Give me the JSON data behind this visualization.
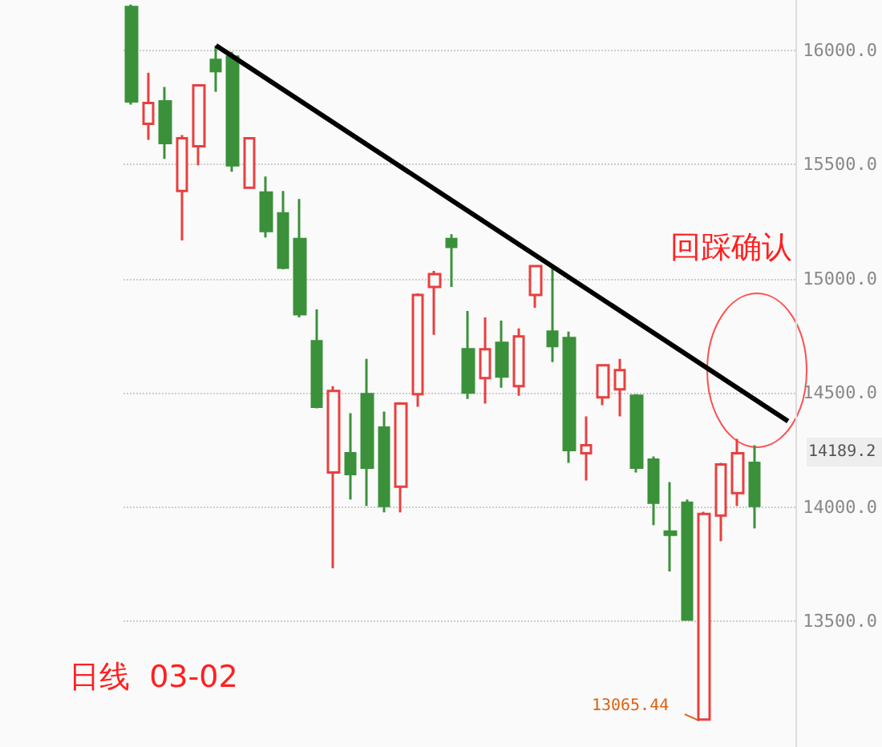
{
  "chart_data": {
    "type": "candlestick",
    "title": "日线  03-02",
    "categories": [
      null,
      null,
      null,
      null,
      null,
      null,
      null,
      null,
      null,
      null,
      null,
      null,
      null,
      null,
      null,
      null,
      null,
      null,
      null,
      null,
      null,
      null,
      null,
      null,
      null,
      null,
      null,
      null,
      null,
      null,
      null,
      null,
      null,
      null,
      null,
      null,
      null,
      null,
      null,
      null
    ],
    "ohlc": [
      [
        16189,
        16200,
        15762,
        15776
      ],
      [
        15678,
        15902,
        15608,
        15769
      ],
      [
        15776,
        15839,
        15524,
        15594
      ],
      [
        15384,
        15629,
        15167,
        15615
      ],
      [
        15580,
        15846,
        15496,
        15846
      ],
      [
        15958,
        16021,
        15818,
        15909
      ],
      [
        15972,
        15993,
        15468,
        15496
      ],
      [
        15398,
        15615,
        15398,
        15615
      ],
      [
        15377,
        15447,
        15181,
        15209
      ],
      [
        15286,
        15384,
        15041,
        15048
      ],
      [
        15174,
        15349,
        14831,
        14845
      ],
      [
        14726,
        14866,
        14432,
        14439
      ],
      [
        14152,
        14530,
        13732,
        14509
      ],
      [
        14236,
        14411,
        14033,
        14145
      ],
      [
        14495,
        14649,
        14005,
        14173
      ],
      [
        14348,
        14418,
        13977,
        14005
      ],
      [
        14089,
        14460,
        13977,
        14453
      ],
      [
        14495,
        14936,
        14439,
        14929
      ],
      [
        14964,
        15034,
        14754,
        15020
      ],
      [
        15174,
        15195,
        14964,
        15139
      ],
      [
        14691,
        14859,
        14474,
        14502
      ],
      [
        14565,
        14831,
        14453,
        14691
      ],
      [
        14719,
        14817,
        14523,
        14572
      ],
      [
        14530,
        14782,
        14488,
        14747
      ],
      [
        14929,
        15055,
        14873,
        15055
      ],
      [
        14768,
        15062,
        14635,
        14705
      ],
      [
        14740,
        14768,
        14194,
        14250
      ],
      [
        14236,
        14397,
        14117,
        14271
      ],
      [
        14481,
        14621,
        14446,
        14621
      ],
      [
        14516,
        14649,
        14397,
        14600
      ],
      [
        14488,
        14495,
        14152,
        14173
      ],
      [
        14208,
        14222,
        13921,
        14019
      ],
      [
        13893,
        14110,
        13718,
        13879
      ],
      [
        14019,
        14033,
        13508,
        13508
      ],
      [
        13070,
        13980,
        13065.44,
        13970
      ],
      [
        13963,
        14194,
        13851,
        14187
      ],
      [
        14061,
        14299,
        14005,
        14236
      ],
      [
        14194,
        14271,
        13907,
        14005
      ],
      null,
      null
    ],
    "series": [
      {
        "type": "line",
        "color": "#000000",
        "values": [
          null,
          null,
          null,
          null,
          null,
          16021,
          null,
          null,
          null,
          null,
          null,
          null,
          null,
          null,
          null,
          null,
          null,
          null,
          null,
          null,
          null,
          null,
          null,
          null,
          null,
          null,
          null,
          null,
          null,
          null,
          null,
          null,
          null,
          null,
          null,
          null,
          null,
          null,
          null,
          14376
        ]
      }
    ],
    "ylim": [
      12950,
      16220
    ],
    "yticks": [
      {
        "value": 13500,
        "label": "13500.0"
      },
      {
        "value": 14000,
        "label": "14000.0"
      },
      {
        "value": 14500,
        "label": "14500.0"
      },
      {
        "value": 15000,
        "label": "15000.0"
      },
      {
        "value": 15500,
        "label": "15500.0"
      },
      {
        "value": 16000,
        "label": "16000.0"
      }
    ],
    "grid": "y",
    "tick_labels": "y",
    "annotations": [
      "回踩确认",
      "13065.44",
      "14189.2"
    ]
  }
}
